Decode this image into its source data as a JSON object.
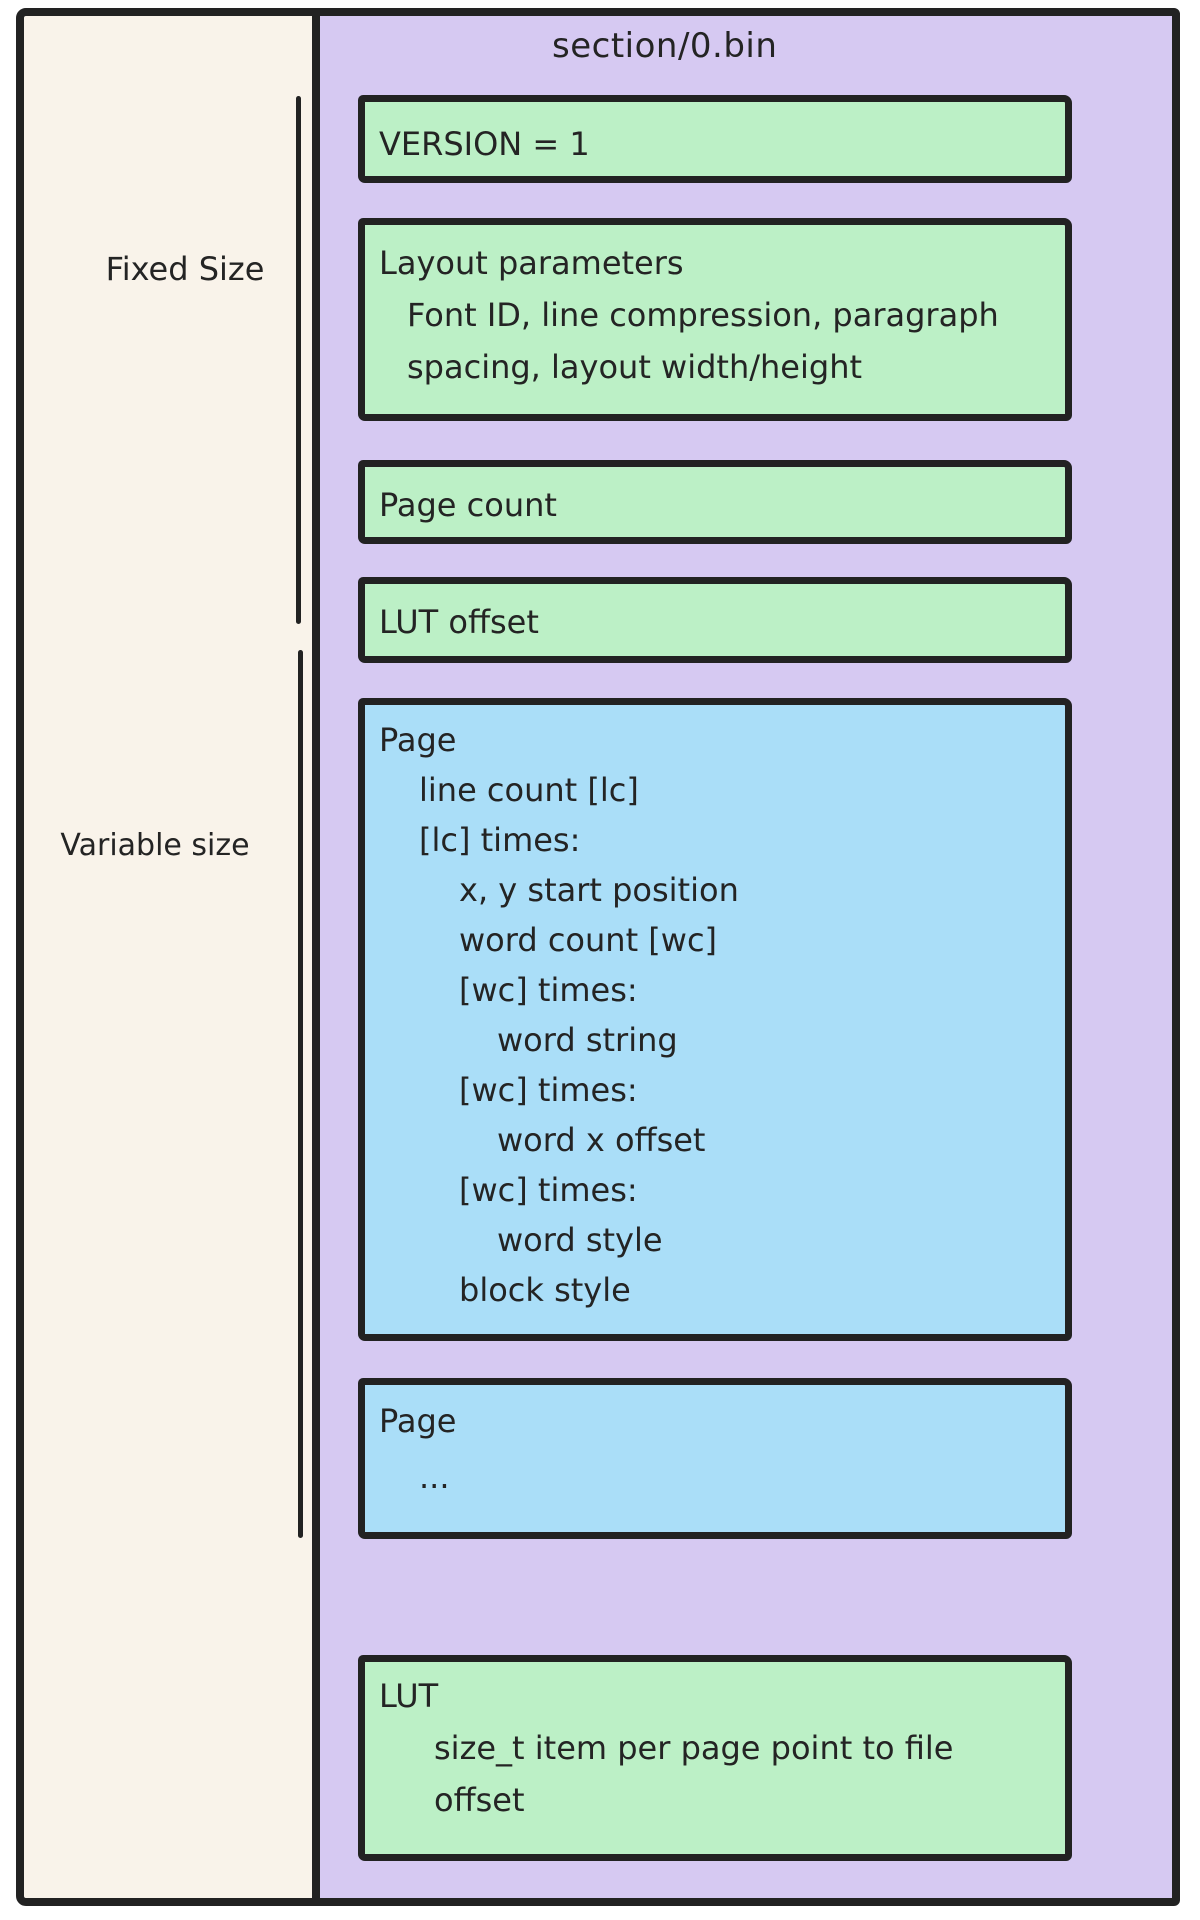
{
  "diagram": {
    "title": "section/0.bin",
    "annotations": {
      "fixed": "Fixed Size",
      "variable": "Variable size"
    },
    "colors": {
      "stroke": "#222222",
      "left_panel_background": "#f9f3ea",
      "section_panel": "#d6c9f2",
      "fixed_field_box": "#bcf0c6",
      "variable_record_box": "#aadef8"
    },
    "boxes": {
      "version": {
        "kind": "green",
        "lines": [
          {
            "text": "VERSION = 1",
            "indent": 0
          }
        ]
      },
      "layout_parameters": {
        "kind": "green",
        "lines": [
          {
            "text": "Layout parameters",
            "indent": 0
          },
          {
            "text": "Font ID, line compression, paragraph",
            "indent": 1
          },
          {
            "text": "spacing, layout width/height",
            "indent": 1
          }
        ]
      },
      "page_count": {
        "kind": "green",
        "lines": [
          {
            "text": "Page count",
            "indent": 0
          }
        ]
      },
      "lut_offset": {
        "kind": "green",
        "lines": [
          {
            "text": "LUT offset",
            "indent": 0
          }
        ]
      },
      "page_detail": {
        "kind": "blue",
        "lines": [
          {
            "text": "Page",
            "indent": 0
          },
          {
            "text": "line count [lc]",
            "indent": 1
          },
          {
            "text": "[lc] times:",
            "indent": 1
          },
          {
            "text": "x, y start position",
            "indent": 2
          },
          {
            "text": "word count [wc]",
            "indent": 2
          },
          {
            "text": "[wc] times:",
            "indent": 2
          },
          {
            "text": "word string",
            "indent": 3
          },
          {
            "text": "[wc] times:",
            "indent": 2
          },
          {
            "text": "word x offset",
            "indent": 3
          },
          {
            "text": "[wc] times:",
            "indent": 2
          },
          {
            "text": "word style",
            "indent": 3
          },
          {
            "text": "block style",
            "indent": 2
          }
        ]
      },
      "page_more": {
        "kind": "blue",
        "lines": [
          {
            "text": "Page",
            "indent": 0
          },
          {
            "text": "...",
            "indent": 1
          }
        ]
      },
      "lut": {
        "kind": "green",
        "lines": [
          {
            "text": "LUT",
            "indent": 0
          },
          {
            "text": "size_t item per page point to file",
            "indent": 1
          },
          {
            "text": "offset",
            "indent": 1
          }
        ]
      }
    }
  }
}
